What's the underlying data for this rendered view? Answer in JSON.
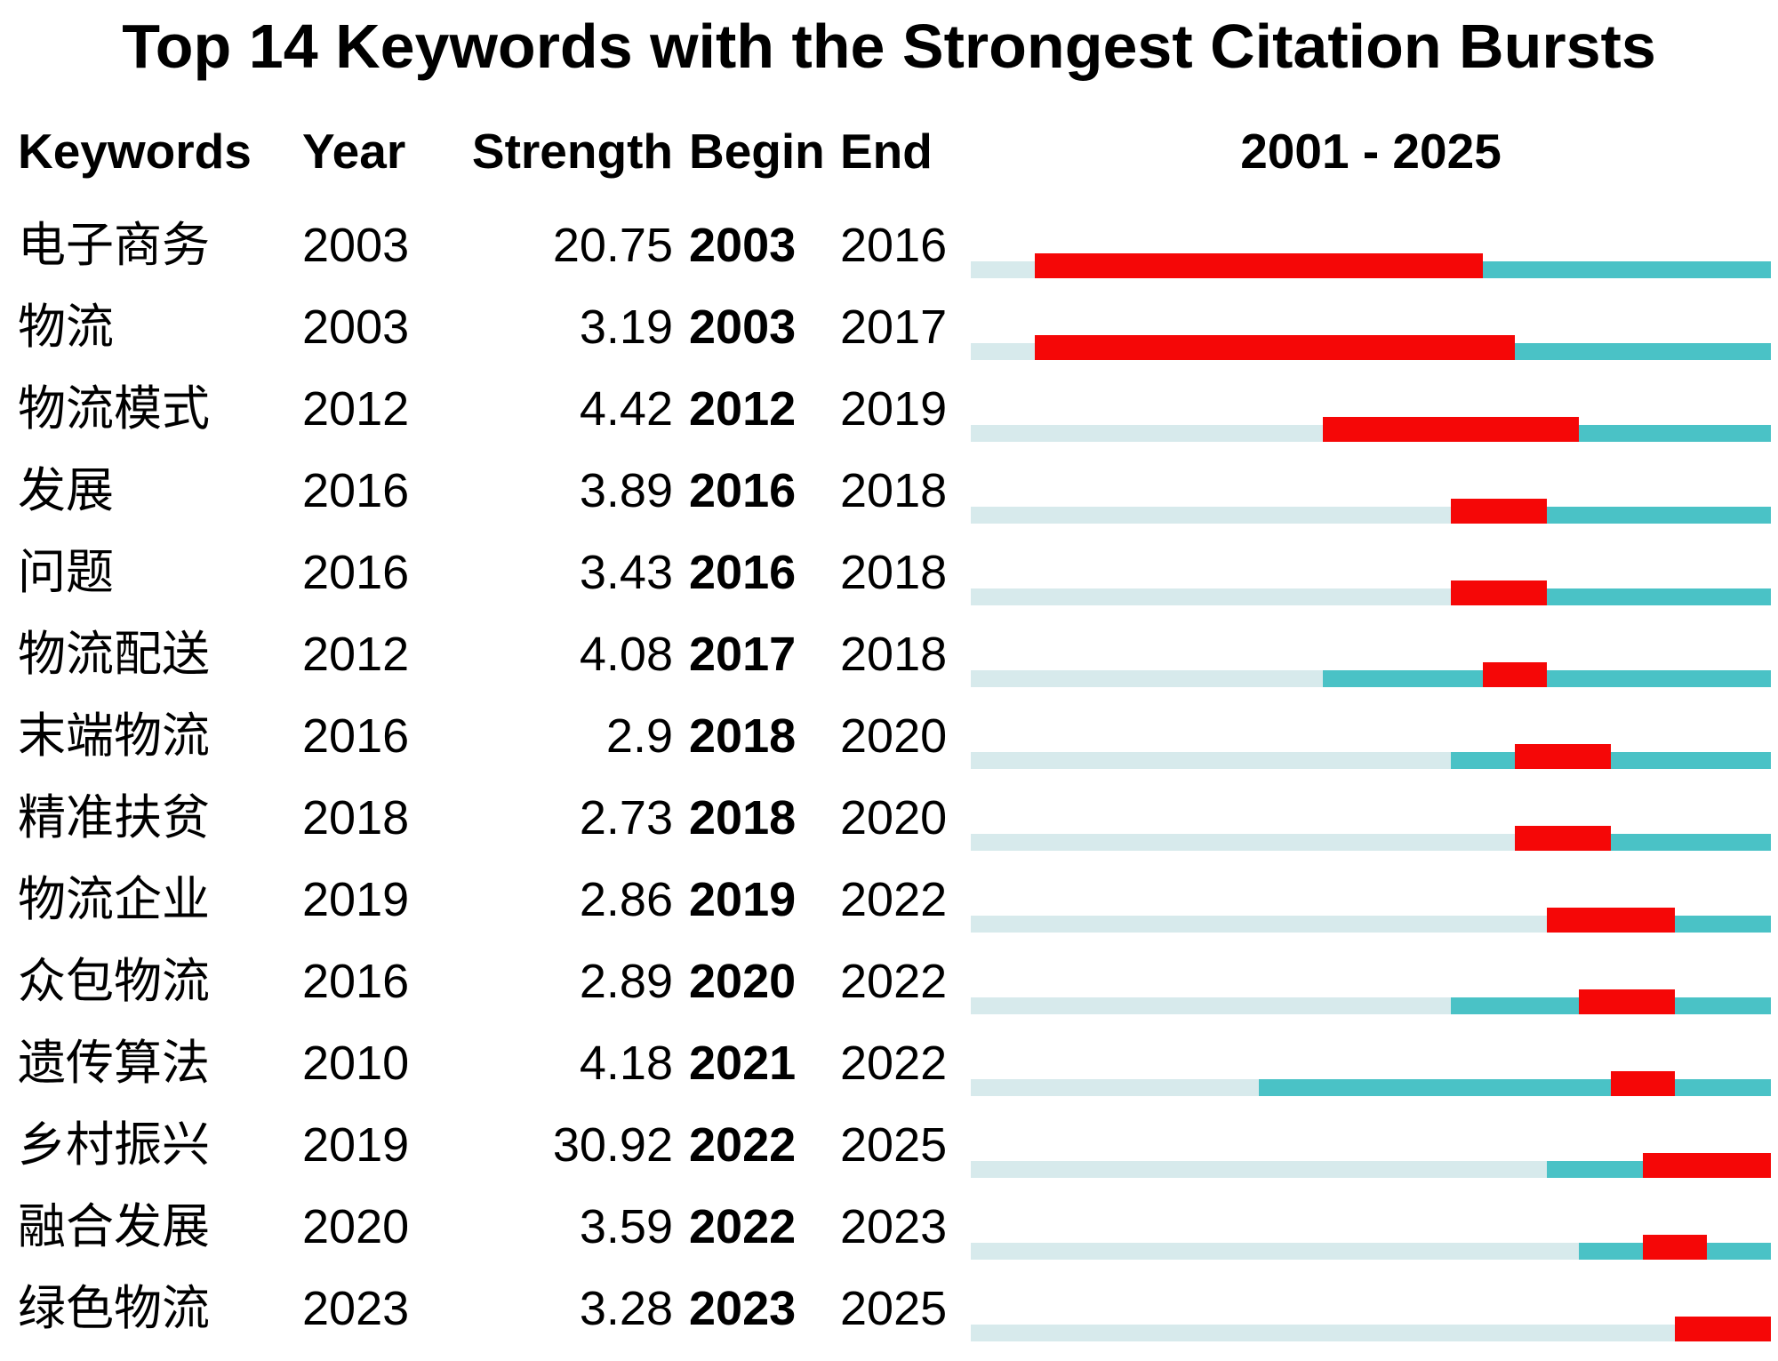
{
  "title": "Top 14 Keywords with the Strongest Citation Bursts",
  "header": {
    "keywords": "Keywords",
    "year": "Year",
    "strength": "Strength",
    "begin": "Begin",
    "end": "End",
    "range": "2001 - 2025"
  },
  "colors": {
    "burst_red": "#f50707",
    "active_teal": "#4ac2c6",
    "inactive_pale": "#d7eaec"
  },
  "chart_data": {
    "type": "table",
    "title": "Top 14 Keywords with the Strongest Citation Bursts",
    "columns": [
      "Keywords",
      "Year",
      "Strength",
      "Begin",
      "End"
    ],
    "timeline_range": [
      2001,
      2025
    ],
    "legend": {
      "pale_segment": "years before keyword first appears",
      "teal_segment": "years keyword is active",
      "red_segment": "citation burst period (Begin–End)"
    },
    "rows": [
      {
        "keyword": "电子商务",
        "year": 2003,
        "strength": "20.75",
        "begin": 2003,
        "end": 2016
      },
      {
        "keyword": "物流",
        "year": 2003,
        "strength": "3.19",
        "begin": 2003,
        "end": 2017
      },
      {
        "keyword": "物流模式",
        "year": 2012,
        "strength": "4.42",
        "begin": 2012,
        "end": 2019
      },
      {
        "keyword": "发展",
        "year": 2016,
        "strength": "3.89",
        "begin": 2016,
        "end": 2018
      },
      {
        "keyword": "问题",
        "year": 2016,
        "strength": "3.43",
        "begin": 2016,
        "end": 2018
      },
      {
        "keyword": "物流配送",
        "year": 2012,
        "strength": "4.08",
        "begin": 2017,
        "end": 2018
      },
      {
        "keyword": "末端物流",
        "year": 2016,
        "strength": "2.9",
        "begin": 2018,
        "end": 2020
      },
      {
        "keyword": "精准扶贫",
        "year": 2018,
        "strength": "2.73",
        "begin": 2018,
        "end": 2020
      },
      {
        "keyword": "物流企业",
        "year": 2019,
        "strength": "2.86",
        "begin": 2019,
        "end": 2022
      },
      {
        "keyword": "众包物流",
        "year": 2016,
        "strength": "2.89",
        "begin": 2020,
        "end": 2022
      },
      {
        "keyword": "遗传算法",
        "year": 2010,
        "strength": "4.18",
        "begin": 2021,
        "end": 2022
      },
      {
        "keyword": "乡村振兴",
        "year": 2019,
        "strength": "30.92",
        "begin": 2022,
        "end": 2025
      },
      {
        "keyword": "融合发展",
        "year": 2020,
        "strength": "3.59",
        "begin": 2022,
        "end": 2023
      },
      {
        "keyword": "绿色物流",
        "year": 2023,
        "strength": "3.28",
        "begin": 2023,
        "end": 2025
      }
    ]
  }
}
